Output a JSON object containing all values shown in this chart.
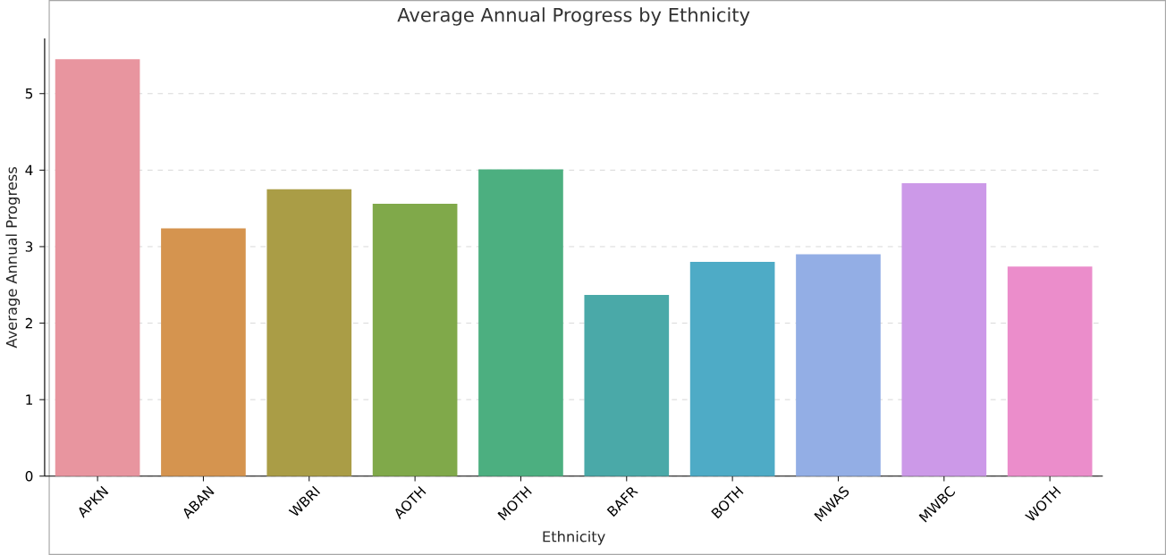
{
  "chart_data": {
    "type": "bar",
    "title": "Average Annual Progress by Ethnicity",
    "xlabel": "Ethnicity",
    "ylabel": "Average Annual Progress",
    "categories": [
      "APKN",
      "ABAN",
      "WBRI",
      "AOTH",
      "MOTH",
      "BAFR",
      "BOTH",
      "MWAS",
      "MWBC",
      "WOTH"
    ],
    "values": [
      5.45,
      3.24,
      3.75,
      3.56,
      4.01,
      2.37,
      2.8,
      2.9,
      3.83,
      2.74
    ],
    "colors": [
      "#e8959f",
      "#d5944f",
      "#aa9d46",
      "#80a94a",
      "#4caf80",
      "#4aa9a8",
      "#4eabc6",
      "#93aee5",
      "#cc99e8",
      "#eb8dcb"
    ],
    "ylim": [
      0,
      5.72
    ],
    "yticks": [
      0,
      1,
      2,
      3,
      4,
      5
    ],
    "grid": "y"
  }
}
